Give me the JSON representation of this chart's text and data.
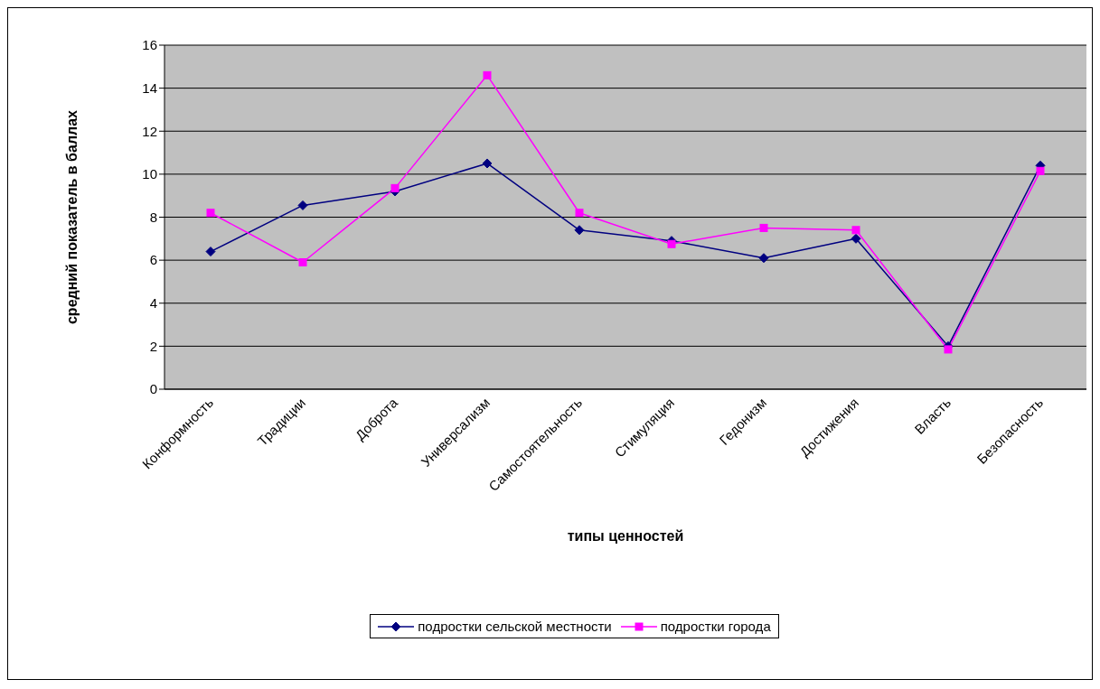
{
  "chart_data": {
    "type": "line",
    "xlabel": "типы ценностей",
    "ylabel": "средний показатель в баллах",
    "categories": [
      "Конформность",
      "Традиции",
      "Доброта",
      "Универсализм",
      "Самостоятельность",
      "Стимуляция",
      "Гедонизм",
      "Достижения",
      "Власть",
      "Безопасность"
    ],
    "series": [
      {
        "name": "подростки сельской местности",
        "color": "#000080",
        "marker": "diamond",
        "values": [
          6.4,
          8.55,
          9.2,
          10.5,
          7.4,
          6.9,
          6.1,
          7.0,
          2.0,
          10.4
        ]
      },
      {
        "name": "подростки города",
        "color": "#ff00ff",
        "marker": "square",
        "values": [
          8.2,
          5.9,
          9.35,
          14.6,
          8.2,
          6.75,
          7.5,
          7.4,
          1.85,
          10.15
        ]
      }
    ],
    "ylim": [
      0,
      16
    ],
    "yticks": [
      0,
      2,
      4,
      6,
      8,
      10,
      12,
      14,
      16
    ],
    "grid": "y",
    "legend": "bottom",
    "line_style": "solid"
  }
}
